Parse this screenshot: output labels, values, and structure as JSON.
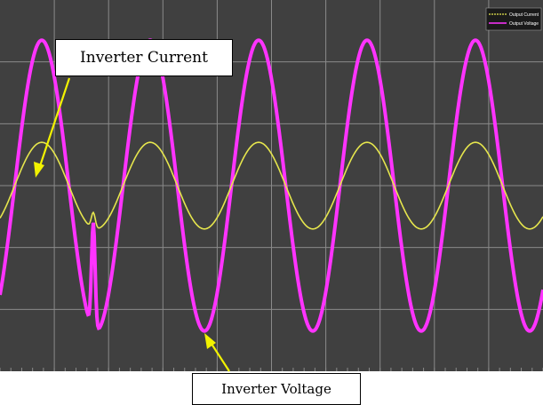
{
  "chart_data": {
    "type": "line",
    "title": "",
    "xlabel": "",
    "ylabel": "",
    "grid": true,
    "legend_position": "top-right",
    "x_divisions": 10,
    "y_divisions": 6,
    "series": [
      {
        "name": "Output Current",
        "color": "#e6e64d",
        "cycles": 5,
        "amplitude_divisions": 0.7,
        "disturbance": "dip near 1.4 cycles"
      },
      {
        "name": "Output Voltage",
        "color": "#ff33ff",
        "cycles": 5,
        "amplitude_divisions": 2.35,
        "disturbance": "dip near 1.4 cycles"
      }
    ]
  },
  "annotations": {
    "current_label": "Inverter Current",
    "voltage_label": "Inverter Voltage"
  },
  "colors": {
    "background": "#404040",
    "grid": "#8a8a8a",
    "arrow": "#f2f200",
    "current": "#e6e64d",
    "voltage": "#ff33ff"
  }
}
